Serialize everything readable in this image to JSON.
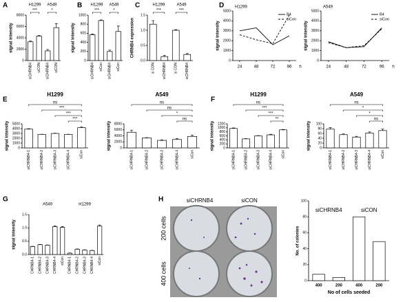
{
  "chart_data": [
    {
      "type": "bar",
      "panel": "A",
      "ylabel": "signal intensity",
      "groups": [
        "H1299",
        "A549"
      ],
      "categories": [
        "siCHRNB4",
        "siCON",
        "siCHRNB4",
        "siCON"
      ],
      "values": [
        3300,
        4300,
        1700,
        5800
      ],
      "errors": [
        150,
        100,
        250,
        700
      ],
      "ylim": [
        0,
        8000
      ],
      "yticks": [
        0,
        2000,
        4000,
        6000,
        8000
      ],
      "annotations": [
        "***",
        "*"
      ],
      "color": "#ffffff"
    },
    {
      "type": "bar",
      "panel": "B",
      "ylabel": "signal intensity",
      "groups": [
        "H1299",
        "A549"
      ],
      "categories": [
        "siCHRNB4",
        "siCon",
        "siCHRNB4",
        "siCon"
      ],
      "values": [
        570,
        880,
        200,
        640
      ],
      "errors": [
        15,
        15,
        30,
        120
      ],
      "ylim": [
        0,
        1000
      ],
      "yticks": [
        0,
        200,
        400,
        600,
        800,
        1000
      ],
      "annotations": [
        "***",
        "*"
      ],
      "color": "#ffffff"
    },
    {
      "type": "bar",
      "panel": "C",
      "ylabel": "CHRNB4 expression",
      "groups": [
        "H1299",
        "A549"
      ],
      "categories": [
        "si CON",
        "siCHRNB4",
        "si CON",
        "siCHRNB4"
      ],
      "values": [
        1.2,
        0.13,
        1.0,
        0.2
      ],
      "errors": [
        0.12,
        0.04,
        0.02,
        0.03
      ],
      "ylim": [
        0,
        1.5
      ],
      "yticks": [
        {
          "value": 0,
          "label": "0.0"
        },
        0.5,
        {
          "value": 1,
          "label": "1.0"
        },
        1.5
      ],
      "annotations": [
        "***",
        "***"
      ],
      "color": "#ffffff"
    },
    {
      "type": "line",
      "panel": "D",
      "title": "H1299",
      "ylabel": "signal intensity",
      "xlabel": "h",
      "x": [
        24,
        48,
        72,
        96
      ],
      "xlim": [
        14,
        106
      ],
      "xticks": [
        24,
        48,
        72,
        96
      ],
      "series": [
        {
          "name": "B4",
          "color": "#000000",
          "dashed": false,
          "values": [
            3000,
            3300,
            1600,
            2500
          ]
        },
        {
          "name": "siCon",
          "color": "#000000",
          "dashed": true,
          "values": [
            2600,
            2100,
            1700,
            4600
          ]
        }
      ],
      "ylim": [
        0,
        5000
      ],
      "yticks": [
        0,
        1000,
        2000,
        3000,
        4000,
        5000
      ],
      "legend": "upper right"
    },
    {
      "type": "line",
      "title": "A549",
      "ylabel": "signal intensity",
      "xlabel": "h",
      "x": [
        24,
        48,
        72,
        96
      ],
      "xlim": [
        14,
        106
      ],
      "xticks": [
        24,
        48,
        72,
        96
      ],
      "series": [
        {
          "name": "B4",
          "color": "#000000",
          "dashed": false,
          "values": [
            1900,
            1300,
            1400,
            3300
          ]
        },
        {
          "name": "siCon",
          "color": "#000000",
          "dashed": true,
          "values": [
            1800,
            1300,
            1500,
            3200
          ]
        }
      ],
      "ylim": [
        0,
        5000
      ],
      "yticks": [
        0,
        1000,
        2000,
        3000,
        4000,
        5000
      ],
      "legend": "upper right"
    },
    {
      "type": "bar",
      "panel": "E",
      "title": "H1299",
      "ylabel": "signal intensity",
      "categories": [
        "siCHRNB4-1",
        "siCHRNB4-2",
        "siCHRNB4-3",
        "siCHRNB4-4",
        "siCon"
      ],
      "values": [
        3900,
        2800,
        3000,
        2800,
        4200
      ],
      "errors": [
        80,
        50,
        60,
        50,
        150
      ],
      "ylim": [
        0,
        5000
      ],
      "yticks": [
        0,
        1000,
        2000,
        3000,
        4000,
        5000
      ],
      "annotations": [
        "ns",
        "***",
        "***",
        "***"
      ],
      "color": "#ffffff"
    },
    {
      "type": "bar",
      "title": "A549",
      "ylabel": "signal intensity",
      "categories": [
        "siCHRNB4-1",
        "siCHRNB4-2",
        "siCHRNB4-3",
        "siCHRNB4-4",
        "siCon"
      ],
      "values": [
        5200,
        3300,
        2500,
        2800,
        3800
      ],
      "errors": [
        700,
        100,
        150,
        250,
        400
      ],
      "ylim": [
        0,
        8000
      ],
      "yticks": [
        0,
        2000,
        4000,
        6000,
        8000
      ],
      "annotations": [
        "ns",
        "ns",
        "*",
        "ns"
      ],
      "color": "#ffffff"
    },
    {
      "type": "bar",
      "panel": "F",
      "title": "H1299",
      "ylabel": "signal intensity",
      "categories": [
        "siCHRNB4-1",
        "siCHRNB4-2",
        "siCHRNB4-3",
        "siCHRNB4-4",
        "siCon"
      ],
      "values": [
        970,
        450,
        600,
        650,
        900
      ],
      "errors": [
        25,
        15,
        15,
        30,
        20
      ],
      "ylim": [
        0,
        1200
      ],
      "yticks": [
        0,
        200,
        400,
        600,
        800,
        1000,
        1200
      ],
      "annotations": [
        "ns",
        "***",
        "***",
        "**"
      ],
      "color": "#ffffff"
    },
    {
      "type": "bar",
      "title": "A549",
      "ylabel": "signal intensity",
      "categories": [
        "siCHRNB4-1",
        "siCHRNB4-2",
        "siCHRNB4-3",
        "siCHRNB4-4",
        "siCon"
      ],
      "values": [
        78,
        55,
        45,
        62,
        72
      ],
      "errors": [
        6,
        3,
        3,
        4,
        6
      ],
      "ylim": [
        0,
        100
      ],
      "yticks": [
        0,
        20,
        40,
        60,
        80,
        100
      ],
      "annotations": [
        "ns",
        "*",
        "*",
        "ns"
      ],
      "color": "#ffffff"
    },
    {
      "type": "bar",
      "panel": "G",
      "ylabel": "signal intensity",
      "groups": [
        "A549",
        "H1299"
      ],
      "categories": [
        "CHRNB4-1",
        "CHRNB4-2",
        "CHRNB4-3",
        "CHRNB4-4",
        "siCon",
        "CHRNB4-1",
        "CHRNB4-2",
        "CHRNB4-3",
        "CHRNB4-4",
        "siCon"
      ],
      "values": [
        0.3,
        0.37,
        0.35,
        1.05,
        1.02,
        0.05,
        0.2,
        0.17,
        0.15,
        1.07
      ],
      "errors": [
        0.01,
        0.01,
        0.01,
        0.03,
        0.03,
        0.01,
        0.01,
        0.01,
        0.01,
        0.04
      ],
      "ylim": [
        0,
        1.5
      ],
      "yticks": [
        {
          "value": 0,
          "label": "0.0"
        },
        0.5,
        {
          "value": 1,
          "label": "1.0"
        },
        1.5
      ],
      "color": "#ffffff"
    },
    {
      "type": "bar",
      "panel": "H",
      "ylabel": "No. of colonies",
      "xlabel": "No of cells seeded",
      "groups": [
        "siCHRNB4",
        "siCON"
      ],
      "categories": [
        "400",
        "200",
        "400",
        "200"
      ],
      "values": [
        8,
        4,
        80,
        49
      ],
      "ylim": [
        0,
        100
      ],
      "yticks": [
        0,
        20,
        40,
        60,
        80,
        100
      ],
      "color": "#ffffff"
    }
  ],
  "photo": {
    "columns": [
      "siCHRNB4",
      "siCON"
    ],
    "rows": [
      "200 cells",
      "400 cells"
    ]
  }
}
